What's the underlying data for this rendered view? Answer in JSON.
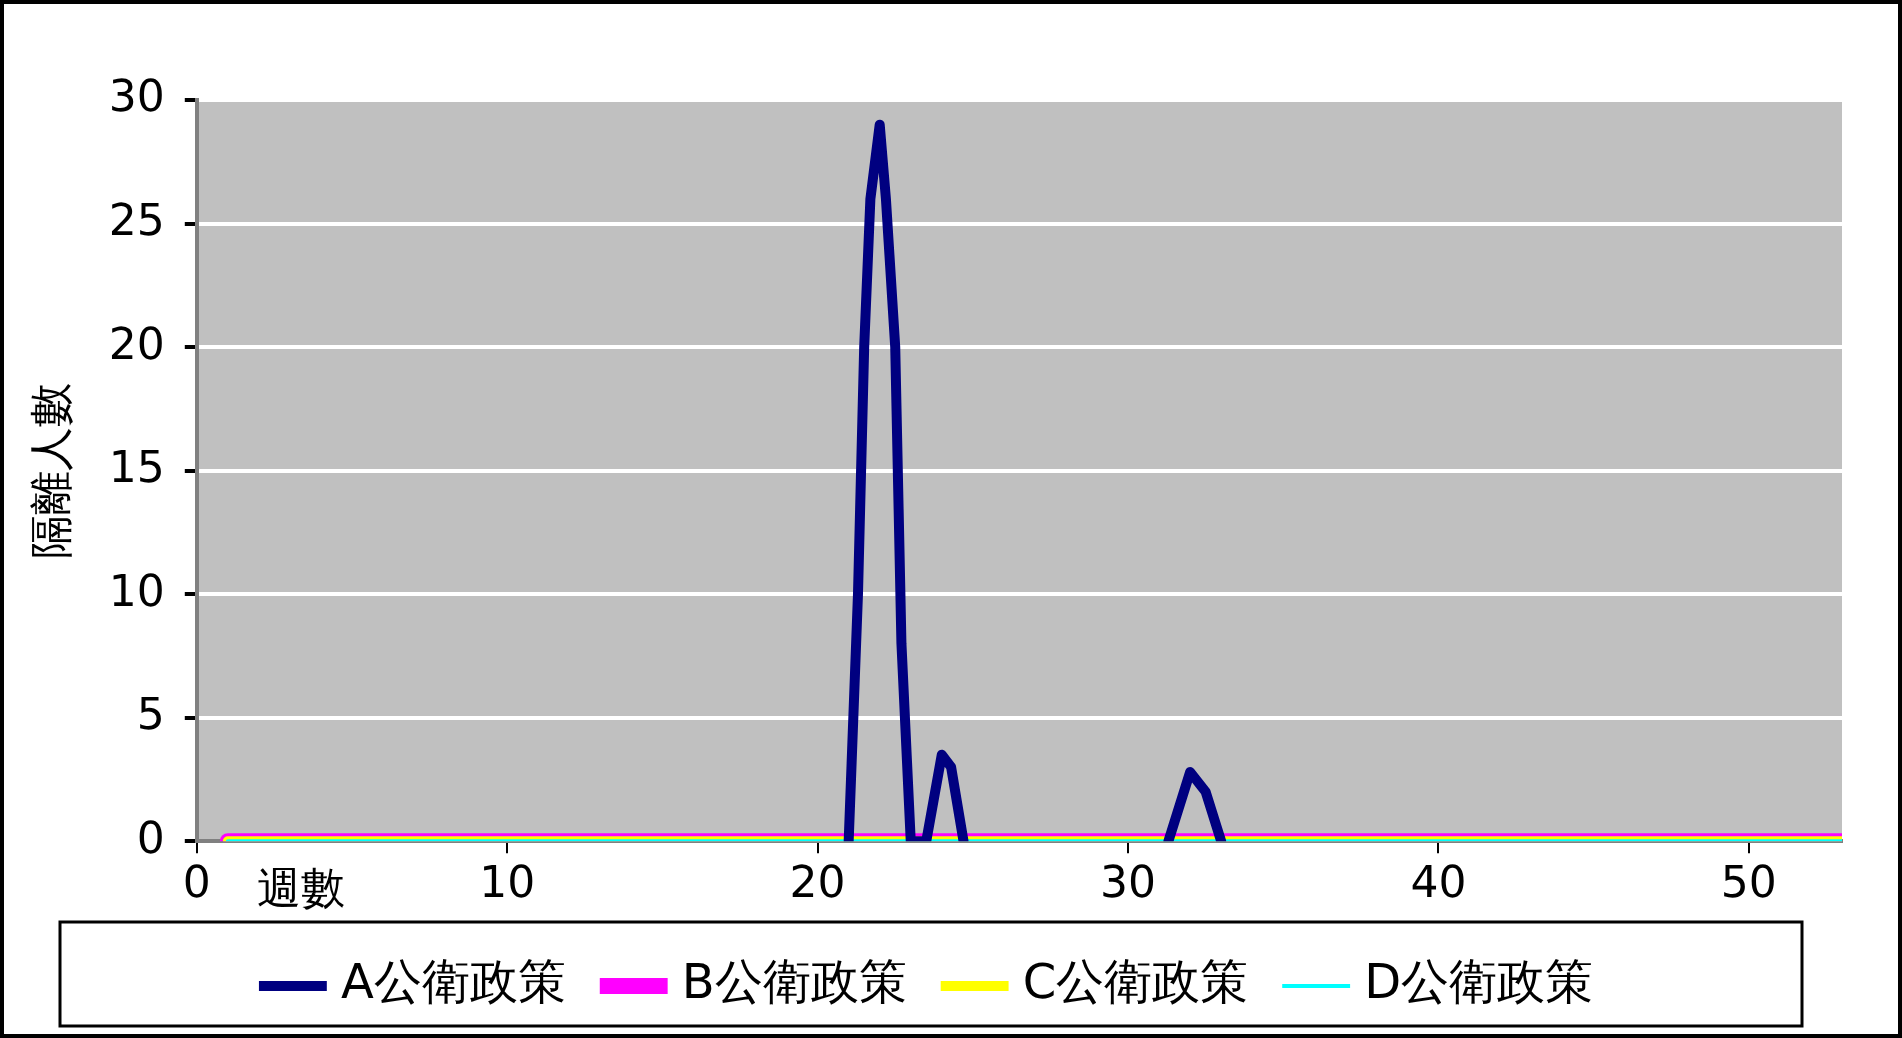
{
  "chart_data": {
    "type": "line",
    "xlabel": "週數",
    "ylabel": "隔離人數",
    "xlim": [
      0,
      53
    ],
    "xticks": [
      0,
      10,
      20,
      30,
      40,
      50
    ],
    "ylim": [
      0,
      30
    ],
    "yticks": [
      0,
      5,
      10,
      15,
      20,
      25,
      30
    ],
    "grid": "y",
    "legend": "bottom",
    "marker": "none",
    "line_style": "solid",
    "series": [
      {
        "name": "A公衛政策",
        "color": "#000080",
        "x": [
          21,
          21.3,
          21.5,
          21.7,
          22,
          22.2,
          22.5,
          22.7,
          23,
          23.5,
          24,
          24.3,
          24.7,
          28,
          31.3,
          32,
          32.5,
          33
        ],
        "values": [
          0,
          10,
          20,
          26,
          29,
          26,
          20,
          8,
          0,
          0,
          3.5,
          3,
          0,
          null,
          0,
          2.8,
          2,
          0
        ]
      },
      {
        "name": "B公衛政策",
        "color": "#ff00ff",
        "x": [
          1,
          53
        ],
        "values": [
          0,
          0
        ]
      },
      {
        "name": "C公衛政策",
        "color": "#ffff00",
        "x": [
          1,
          53
        ],
        "values": [
          0,
          0
        ]
      },
      {
        "name": "D公衛政策",
        "color": "#00ffff",
        "x": [
          1,
          53
        ],
        "values": [
          0,
          0
        ]
      }
    ]
  }
}
